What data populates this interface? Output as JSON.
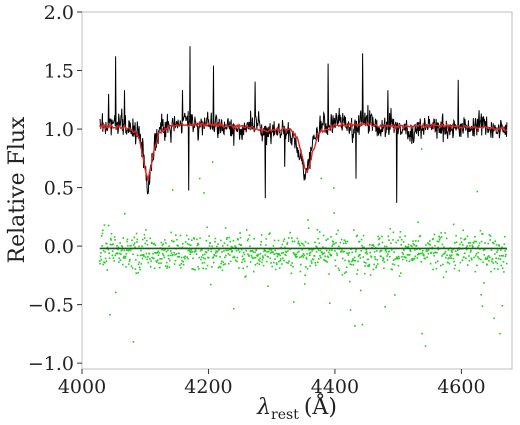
{
  "chart_data": {
    "type": "line",
    "title": "",
    "xlabel": "λ",
    "xlabel_subscript": "rest",
    "xlabel_unit": "(Å)",
    "ylabel": "Relative Flux",
    "xlim": [
      4000,
      4680
    ],
    "ylim": [
      -1.05,
      2.0
    ],
    "xticks": [
      4000,
      4200,
      4400,
      4600
    ],
    "xtick_labels": [
      "4000",
      "4200",
      "4400",
      "4600"
    ],
    "yticks": [
      -1.0,
      -0.5,
      0.0,
      0.5,
      1.0,
      1.5,
      2.0
    ],
    "ytick_labels": [
      "−1.0",
      "−0.5",
      "0.0",
      "0.5",
      "1.0",
      "1.5",
      "2.0"
    ],
    "grid": false,
    "legend": "none",
    "colors": {
      "observed": "#000000",
      "model": "#d62728",
      "residuals": "#22cc22",
      "zero_line": "#1a5c1a",
      "frame": "#bfbfbf"
    },
    "series": [
      {
        "kind": "observed-spectrum",
        "x": [
          4028,
          4040,
          4055,
          4070,
          4085,
          4095,
          4100,
          4104,
          4108,
          4115,
          4125,
          4140,
          4155,
          4170,
          4185,
          4200,
          4215,
          4230,
          4245,
          4260,
          4275,
          4290,
          4305,
          4320,
          4335,
          4345,
          4352,
          4358,
          4365,
          4380,
          4395,
          4410,
          4430,
          4450,
          4470,
          4490,
          4510,
          4530,
          4550,
          4570,
          4590,
          4610,
          4630,
          4650,
          4672
        ],
        "y": [
          1.05,
          1.02,
          1.08,
          1.0,
          1.0,
          0.88,
          0.65,
          0.48,
          0.62,
          0.9,
          1.02,
          1.0,
          1.05,
          1.1,
          1.02,
          1.05,
          1.0,
          1.02,
          0.98,
          1.02,
          1.05,
          0.95,
          1.0,
          1.0,
          0.9,
          0.8,
          0.6,
          0.68,
          0.9,
          1.05,
          1.02,
          1.08,
          1.0,
          1.1,
          1.0,
          1.05,
          1.0,
          0.98,
          1.05,
          1.0,
          1.02,
          1.0,
          1.05,
          1.0,
          0.98
        ]
      },
      {
        "kind": "model-fit",
        "x": [
          4028,
          4050,
          4075,
          4090,
          4098,
          4104,
          4110,
          4120,
          4140,
          4180,
          4220,
          4260,
          4290,
          4310,
          4330,
          4342,
          4350,
          4356,
          4362,
          4375,
          4400,
          4450,
          4500,
          4550,
          4600,
          4650,
          4672
        ],
        "y": [
          1.03,
          1.02,
          1.01,
          0.93,
          0.72,
          0.55,
          0.72,
          0.95,
          1.03,
          1.04,
          1.03,
          1.02,
          0.98,
          1.0,
          1.0,
          0.9,
          0.72,
          0.62,
          0.75,
          0.97,
          1.03,
          1.04,
          1.02,
          1.03,
          1.02,
          1.01,
          1.0
        ]
      },
      {
        "kind": "residuals",
        "x_range": [
          4028,
          4672
        ],
        "center": -0.05,
        "scatter": 0.12
      },
      {
        "kind": "zero-line",
        "x": [
          4028,
          4672
        ],
        "y": [
          -0.02,
          -0.02
        ]
      }
    ]
  }
}
